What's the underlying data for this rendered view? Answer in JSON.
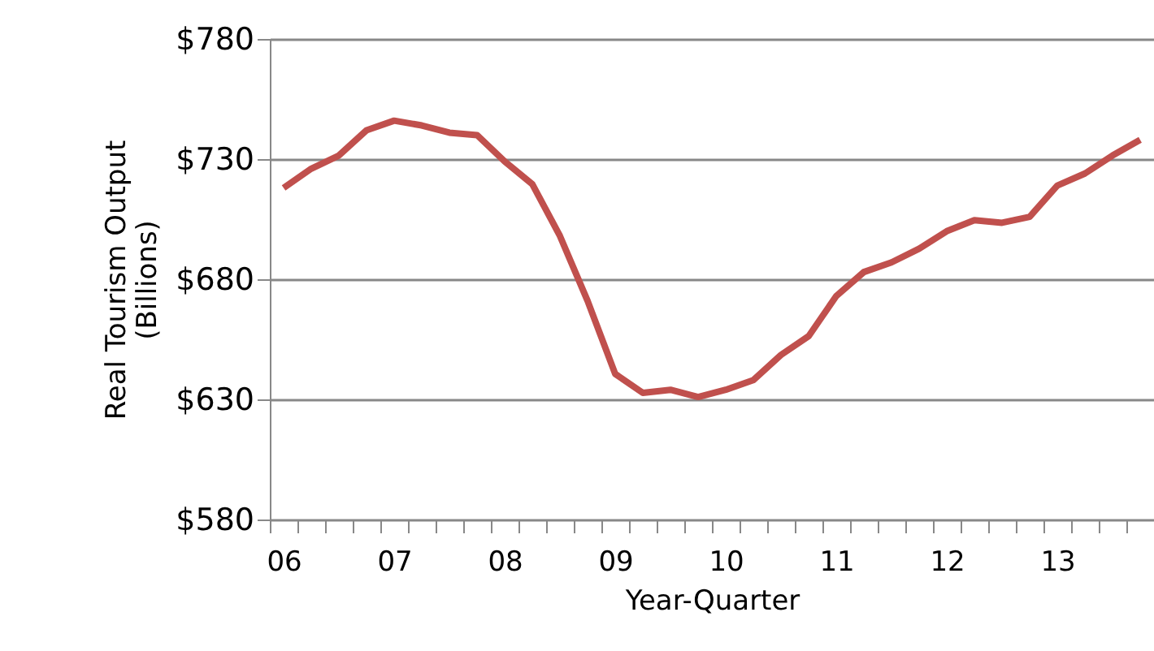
{
  "chart_data": {
    "type": "line",
    "xlabel": "Year-Quarter",
    "ylabel": "Real Tourism Output\n(Billions)",
    "categories": [
      "06",
      null,
      null,
      null,
      "07",
      null,
      null,
      null,
      "08",
      null,
      null,
      null,
      "09",
      null,
      null,
      null,
      "10",
      null,
      null,
      null,
      "11",
      null,
      null,
      null,
      "12",
      null,
      null,
      null,
      "13",
      null,
      null,
      null
    ],
    "series": [
      {
        "color": "#c0504d",
        "values": [
          718,
          726,
          731.5,
          742,
          746,
          744,
          741,
          740,
          729,
          719.6,
          698,
          671,
          640.6,
          632.7,
          634,
          631,
          634,
          638,
          648.5,
          656.3,
          673,
          683,
          687,
          692.7,
          700,
          704.6,
          703.5,
          706,
          719,
          724,
          731.5,
          738
        ]
      }
    ],
    "ylim": [
      580,
      780
    ],
    "yticks": [
      {
        "value": 580,
        "label": "$580"
      },
      {
        "value": 630,
        "label": "$630"
      },
      {
        "value": 680,
        "label": "$680"
      },
      {
        "value": 730,
        "label": "$730"
      },
      {
        "value": 780,
        "label": "$780"
      }
    ],
    "grid": "y",
    "marker": "none",
    "line_style": "solid",
    "legend": false
  }
}
